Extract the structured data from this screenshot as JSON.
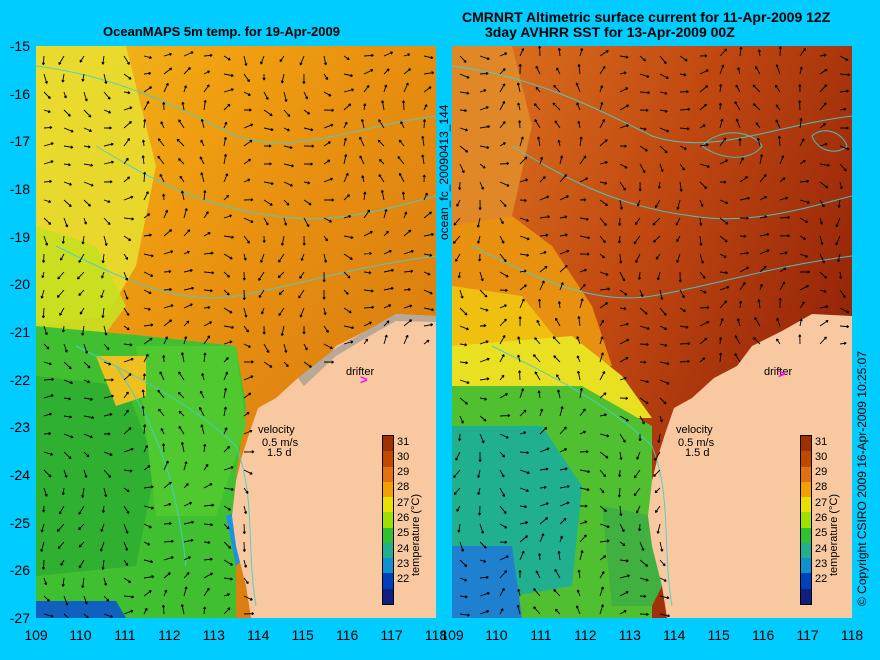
{
  "left_panel": {
    "title": "OceanMAPS 5m temp. for 19-Apr-2009"
  },
  "right_panel": {
    "title_line1": "CMRNRT Altimetric surface current for 11-Apr-2009 12Z",
    "title_line2": "3day AVHRR SST for 13-Apr-2009 00Z"
  },
  "map": {
    "lat_labels": [
      "-15",
      "-16",
      "-17",
      "-18",
      "-19",
      "-20",
      "-21",
      "-22",
      "-23",
      "-24",
      "-25",
      "-26",
      "-27"
    ],
    "lon_labels": [
      "109",
      "110",
      "111",
      "112",
      "113",
      "114",
      "115",
      "116",
      "117",
      "118"
    ],
    "drifter_label": "drifter",
    "drifter_marker": ">",
    "velocity_label": "velocity",
    "velocity_scale": "0.5 m/s",
    "velocity_days": "1.5 d"
  },
  "colorbar": {
    "ticks": [
      "31",
      "30",
      "29",
      "28",
      "27",
      "26",
      "25",
      "24",
      "23",
      "22"
    ],
    "label": "temperature (°C)",
    "colors": [
      "#a03000",
      "#c04800",
      "#e07010",
      "#f0a000",
      "#e8e000",
      "#a0e000",
      "#30c030",
      "#20b090",
      "#1090d0",
      "#0040c0",
      "#102080"
    ]
  },
  "side_labels": {
    "file_id": "ocean_fc_20090413_144",
    "copyright": "© Copyright CSIRO 2009   16-Apr-2009 10:25:07"
  }
}
